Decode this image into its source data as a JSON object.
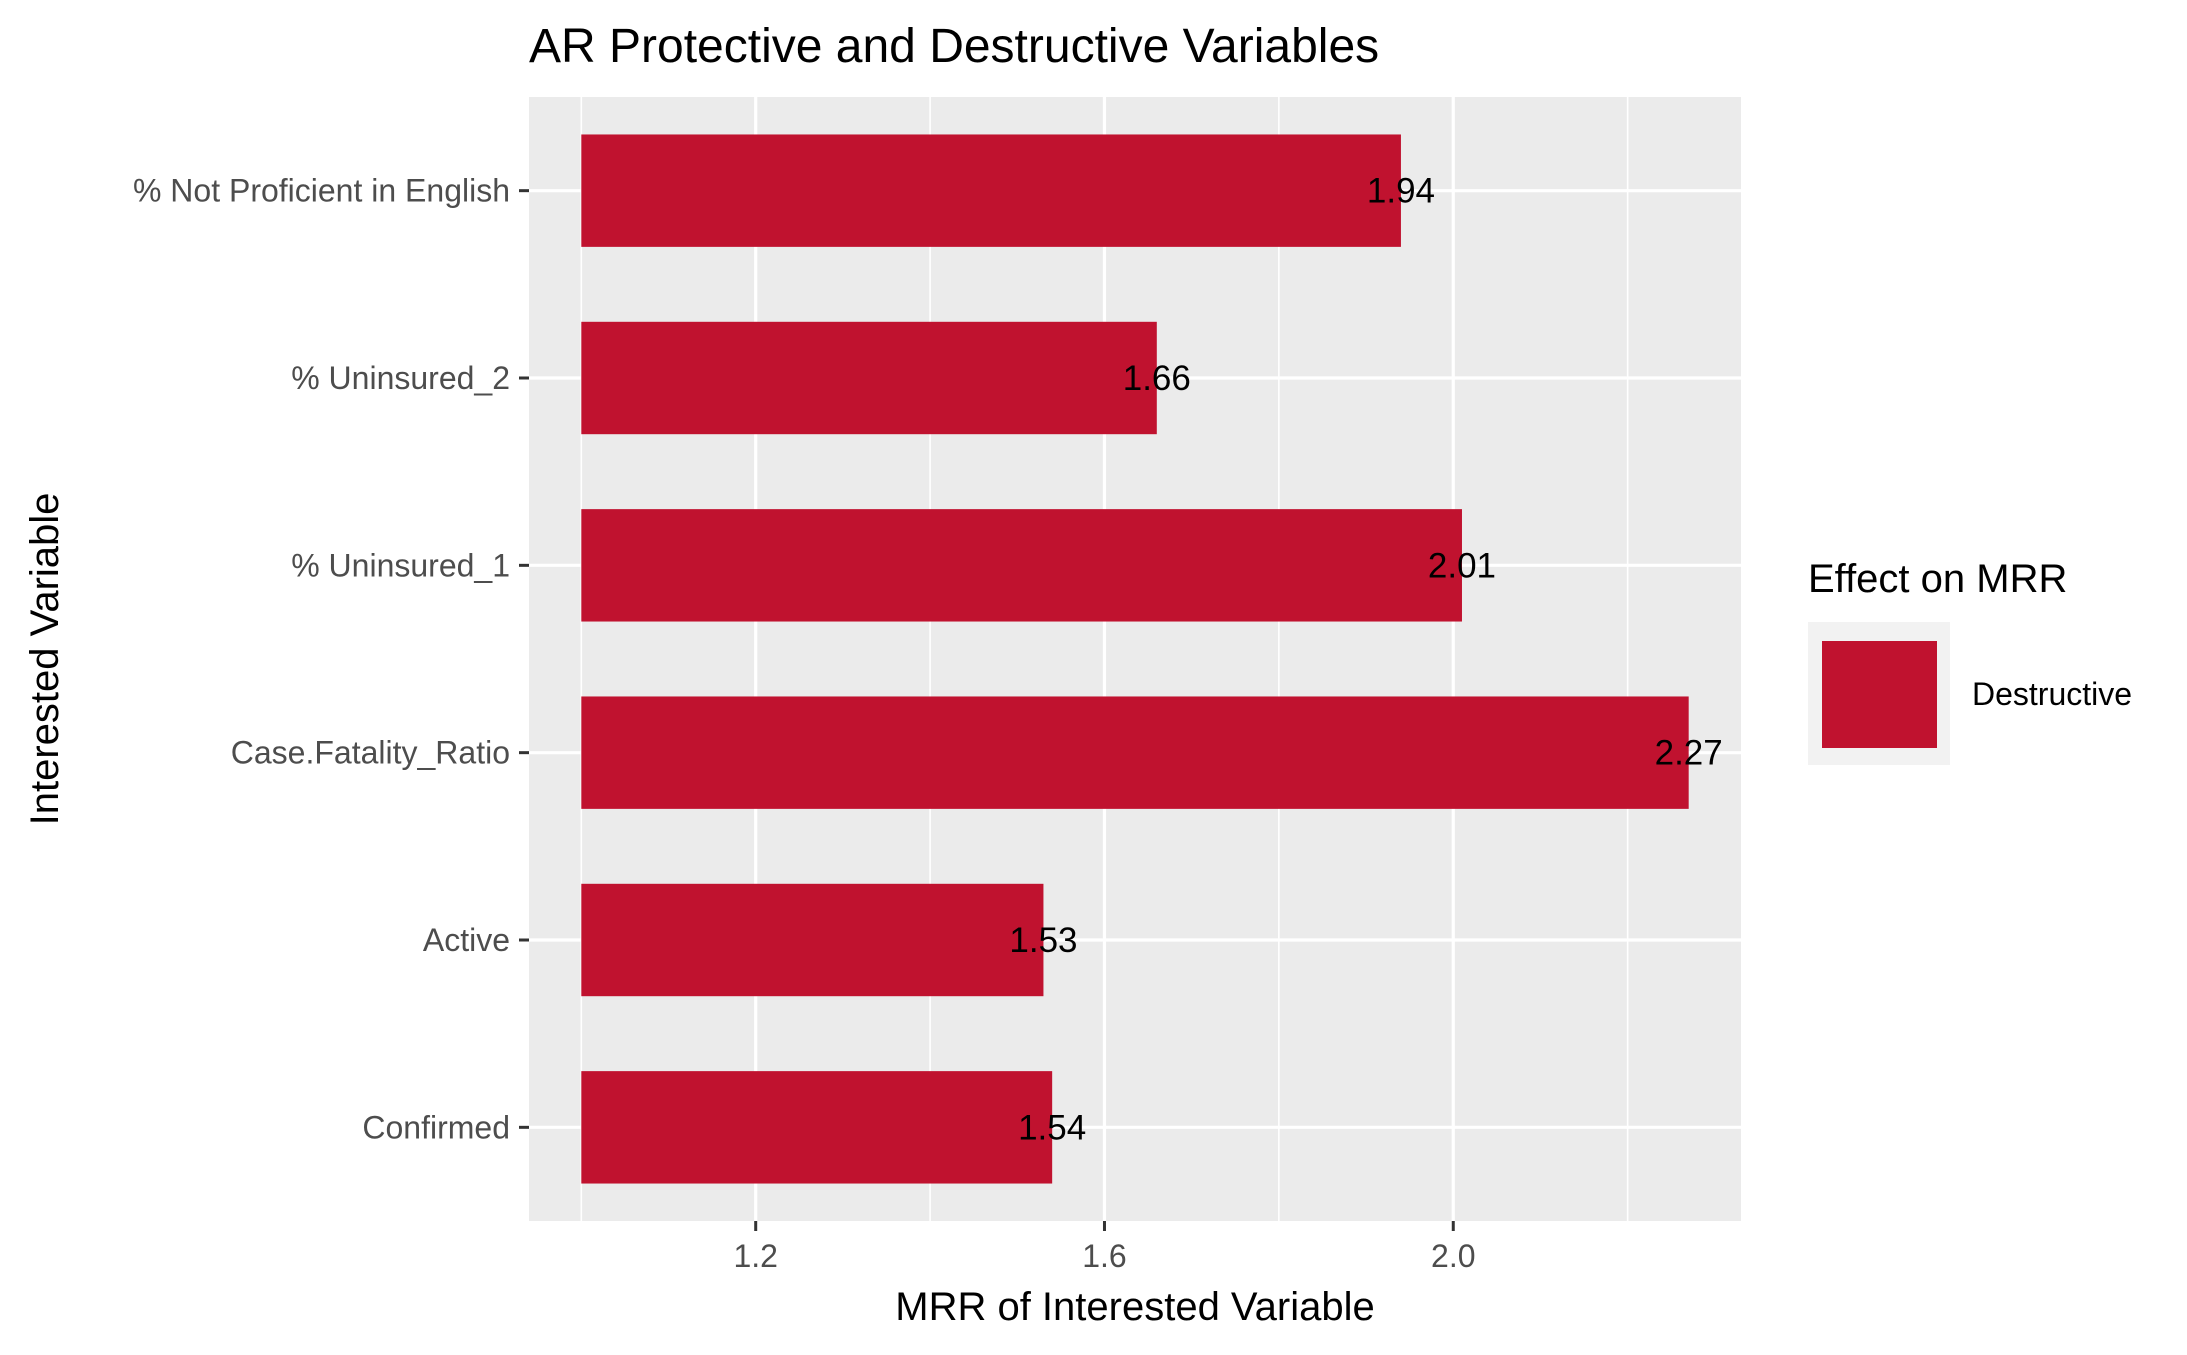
{
  "chart_data": {
    "type": "bar",
    "orientation": "horizontal",
    "title": "AR Protective and Destructive Variables",
    "xlabel": "MRR of Interested Variable",
    "ylabel": "Interested Variable",
    "categories": [
      "% Not Proficient in English",
      "% Uninsured_2",
      "% Uninsured_1",
      "Case.Fatality_Ratio",
      "Active",
      "Confirmed"
    ],
    "series": [
      {
        "name": "Destructive",
        "values": [
          1.94,
          1.66,
          2.01,
          2.27,
          1.53,
          1.54
        ],
        "labels": [
          "1.94",
          "1.66",
          "2.01",
          "2.27",
          "1.53",
          "1.54"
        ]
      }
    ],
    "bar_baseline": 1.0,
    "xlim": [
      0.94,
      2.33
    ],
    "xticks": [
      1.2,
      1.6,
      2.0
    ],
    "xtick_labels": [
      "1.2",
      "1.6",
      "2.0"
    ],
    "x_minor_gridlines": [
      1.0,
      1.4,
      1.8,
      2.2
    ],
    "grid": true,
    "legend": {
      "title": "Effect on MRR",
      "position": "right",
      "entries": [
        {
          "label": "Destructive",
          "color": "#c0122f"
        }
      ]
    },
    "colors": {
      "bar": "#c0122f",
      "panel_background": "#ebebeb",
      "gridline": "#ffffff",
      "legend_key_background": "#f2f2f2"
    }
  }
}
